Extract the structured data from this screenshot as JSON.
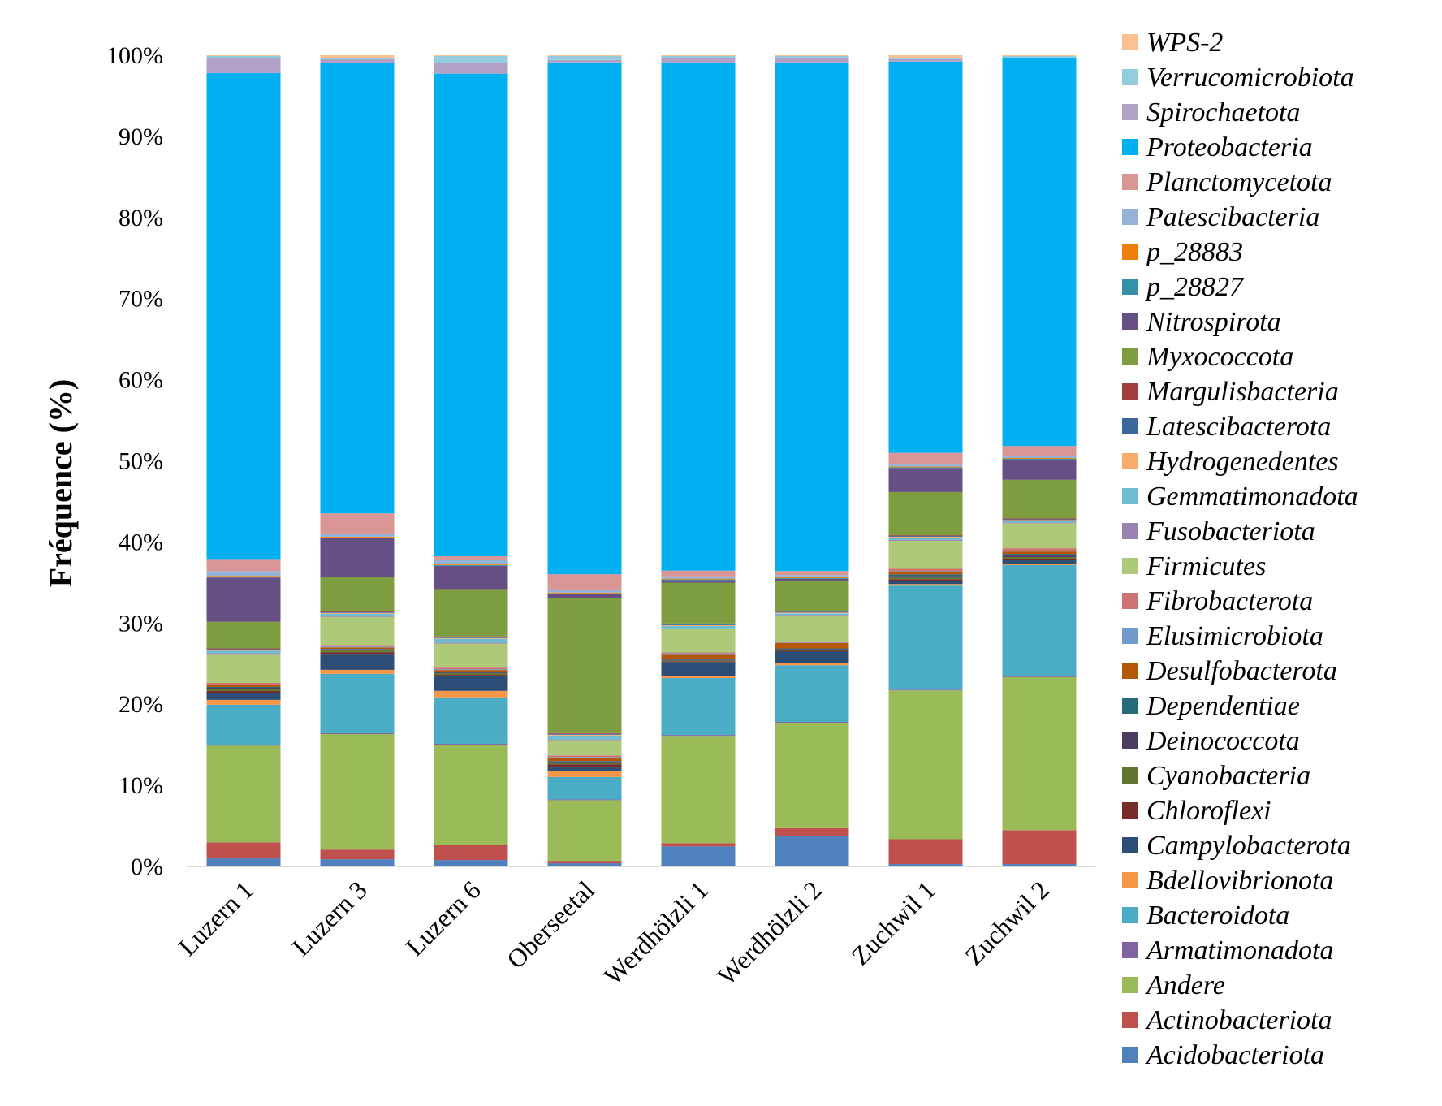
{
  "chart_data": {
    "type": "bar",
    "stacked": true,
    "ylabel": "Fréquence    (%)",
    "xlabel": "",
    "title": "",
    "ylim": [
      0,
      100
    ],
    "yticks": [
      "0%",
      "10%",
      "20%",
      "30%",
      "40%",
      "50%",
      "60%",
      "70%",
      "80%",
      "90%",
      "100%"
    ],
    "categories": [
      "Luzern 1",
      "Luzern 3",
      "Luzern 6",
      "Oberseetal",
      "Werdhölzli 1",
      "Werdhölzli 2",
      "Zuchwil 1",
      "Zuchwil 2"
    ],
    "legend_position": "right",
    "series": [
      {
        "name": "Acidobacteriota",
        "color": "#4e81bd",
        "values": [
          1.0,
          0.9,
          0.8,
          0.4,
          2.5,
          3.8,
          0.3,
          0.3
        ]
      },
      {
        "name": "Actinobacteriota",
        "color": "#c0504d",
        "values": [
          2.0,
          1.2,
          1.9,
          0.3,
          0.4,
          1.0,
          3.1,
          4.2
        ]
      },
      {
        "name": "Andere",
        "color": "#9bbb59",
        "values": [
          12.0,
          14.4,
          12.5,
          7.6,
          13.4,
          13.2,
          18.6,
          19.0
        ]
      },
      {
        "name": "Armatimonadota",
        "color": "#8064a2",
        "values": [
          0.1,
          0.1,
          0.1,
          0.1,
          0.1,
          0.1,
          0.1,
          0.1
        ]
      },
      {
        "name": "Bacteroidota",
        "color": "#4bacc6",
        "values": [
          5.0,
          7.4,
          5.8,
          2.8,
          7.1,
          7.1,
          13.0,
          13.8
        ]
      },
      {
        "name": "Bdellovibrionota",
        "color": "#f79646",
        "values": [
          0.6,
          0.5,
          0.8,
          0.8,
          0.3,
          0.3,
          0.2,
          0.2
        ]
      },
      {
        "name": "Campylobacterota",
        "color": "#2c4d75",
        "values": [
          0.8,
          2.0,
          1.8,
          0.4,
          1.7,
          1.4,
          0.4,
          0.4
        ]
      },
      {
        "name": "Chloroflexi",
        "color": "#772c2a",
        "values": [
          0.3,
          0.2,
          0.2,
          0.4,
          0.1,
          0.1,
          0.2,
          0.2
        ]
      },
      {
        "name": "Cyanobacteria",
        "color": "#5f7530",
        "values": [
          0.3,
          0.2,
          0.2,
          0.2,
          0.1,
          0.1,
          0.2,
          0.2
        ]
      },
      {
        "name": "Deinococcota",
        "color": "#4d3b62",
        "values": [
          0.1,
          0.1,
          0.1,
          0.1,
          0.1,
          0.1,
          0.2,
          0.2
        ]
      },
      {
        "name": "Dependentiae",
        "color": "#276a7c",
        "values": [
          0.1,
          0.1,
          0.1,
          0.1,
          0.1,
          0.1,
          0.2,
          0.2
        ]
      },
      {
        "name": "Desulfobacterota",
        "color": "#b65708",
        "values": [
          0.2,
          0.2,
          0.2,
          0.4,
          0.6,
          0.7,
          0.3,
          0.3
        ]
      },
      {
        "name": "Elusimicrobiota",
        "color": "#729aca",
        "values": [
          0.1,
          0.1,
          0.1,
          0.1,
          0.1,
          0.1,
          0.1,
          0.1
        ]
      },
      {
        "name": "Fibrobacterota",
        "color": "#cd7371",
        "values": [
          0.2,
          0.2,
          0.2,
          0.2,
          0.1,
          0.1,
          0.3,
          0.3
        ]
      },
      {
        "name": "Firmicutes",
        "color": "#afc97a",
        "values": [
          3.6,
          3.5,
          3.0,
          1.9,
          2.9,
          3.2,
          3.5,
          3.1
        ]
      },
      {
        "name": "Fusobacteriota",
        "color": "#9983b5",
        "values": [
          0.1,
          0.1,
          0.1,
          0.1,
          0.1,
          0.1,
          0.1,
          0.1
        ]
      },
      {
        "name": "Gemmatimonadota",
        "color": "#6fbdd1",
        "values": [
          0.3,
          0.3,
          0.5,
          0.5,
          0.3,
          0.2,
          0.3,
          0.2
        ]
      },
      {
        "name": "Hydrogenedentes",
        "color": "#f9ab6b",
        "values": [
          0.1,
          0.1,
          0.1,
          0.1,
          0.1,
          0.1,
          0.1,
          0.1
        ]
      },
      {
        "name": "Latescibacterota",
        "color": "#3a679c",
        "values": [
          0.1,
          0.1,
          0.1,
          0.1,
          0.1,
          0.1,
          0.1,
          0.1
        ]
      },
      {
        "name": "Margulisbacteria",
        "color": "#9f403d",
        "values": [
          0.1,
          0.1,
          0.1,
          0.1,
          0.1,
          0.1,
          0.1,
          0.1
        ]
      },
      {
        "name": "Myxococcota",
        "color": "#7e9c40",
        "values": [
          3.3,
          4.3,
          5.9,
          16.9,
          5.1,
          3.8,
          5.4,
          4.8
        ]
      },
      {
        "name": "Nitrospirota",
        "color": "#664f84",
        "values": [
          5.5,
          4.8,
          2.9,
          0.5,
          0.3,
          0.2,
          3.0,
          2.5
        ]
      },
      {
        "name": "p_28827",
        "color": "#3591a8",
        "values": [
          0.1,
          0.1,
          0.1,
          0.1,
          0.1,
          0.1,
          0.1,
          0.1
        ]
      },
      {
        "name": "p_28883",
        "color": "#f07f09",
        "values": [
          0.1,
          0.1,
          0.1,
          0.1,
          0.1,
          0.1,
          0.1,
          0.1
        ]
      },
      {
        "name": "Patescibacteria",
        "color": "#95b3d7",
        "values": [
          0.6,
          0.3,
          0.5,
          0.3,
          0.3,
          0.3,
          0.3,
          0.3
        ]
      },
      {
        "name": "Planctomycetota",
        "color": "#d99694",
        "values": [
          1.4,
          2.6,
          0.5,
          2.0,
          0.7,
          0.5,
          1.4,
          1.2
        ]
      },
      {
        "name": "Proteobacteria",
        "color": "#00b0f0",
        "values": [
          60.5,
          56.1,
          60.2,
          64.1,
          63.4,
          63.7,
          48.9,
          48.1
        ]
      },
      {
        "name": "Spirochaetota",
        "color": "#b2a1c7",
        "values": [
          1.8,
          0.5,
          1.3,
          0.3,
          0.5,
          0.6,
          0.3,
          0.1
        ]
      },
      {
        "name": "Verrucomicrobiota",
        "color": "#93cddd",
        "values": [
          0.3,
          0.2,
          0.9,
          0.5,
          0.3,
          0.2,
          0.2,
          0.2
        ]
      },
      {
        "name": "WPS-2",
        "color": "#fac090",
        "values": [
          0.1,
          0.3,
          0.1,
          0.1,
          0.1,
          0.1,
          0.3,
          0.1
        ]
      }
    ]
  }
}
